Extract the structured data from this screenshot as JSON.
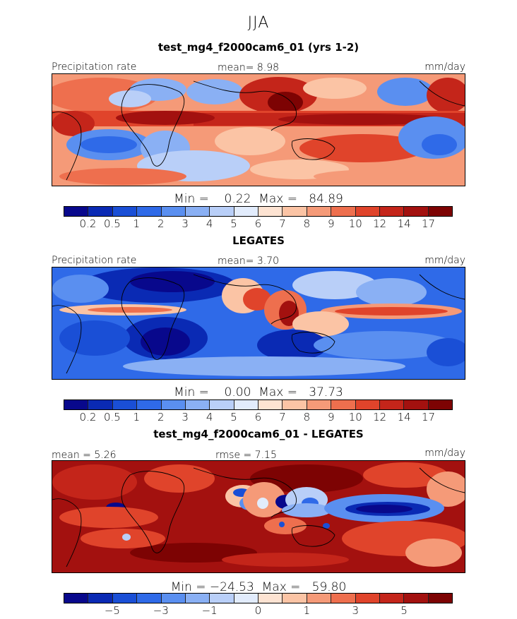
{
  "figure": {
    "season": "JJA",
    "units": "mm/day"
  },
  "panels": [
    {
      "title": "test_mg4_f2000cam6_01 (yrs 1-2)",
      "left_label": "Precipitation rate",
      "center_label": "mean=    8.98",
      "right_label": "mm/day",
      "minmax": "Min =    0.22  Max =   84.89",
      "style": "model"
    },
    {
      "title": "LEGATES",
      "left_label": "Precipitation rate",
      "center_label": "mean=    3.70",
      "right_label": "mm/day",
      "minmax": "Min =    0.00  Max =   37.73",
      "style": "obs"
    },
    {
      "title": "test_mg4_f2000cam6_01 - LEGATES",
      "left_label": "mean =     5.26",
      "center_label": "rmse =     7.15",
      "right_label": "mm/day",
      "minmax": "Min = −24.53  Max =   59.80",
      "style": "diff"
    }
  ],
  "colorbar": {
    "colors": [
      "#08088c",
      "#0a2ab4",
      "#1a4fd6",
      "#2f6ae8",
      "#5a8ff0",
      "#8ab0f4",
      "#b9cff8",
      "#e2ecfc",
      "#fde3d2",
      "#fbc4a5",
      "#f59a78",
      "#ee6f4e",
      "#e0442b",
      "#c4251a",
      "#a3110f",
      "#7d0303"
    ],
    "abs_ticks": [
      "0.2",
      "0.5",
      "1",
      "2",
      "3",
      "4",
      "5",
      "6",
      "7",
      "8",
      "9",
      "10",
      "12",
      "14",
      "17"
    ],
    "diff_ticks": [
      "−5",
      "−3",
      "−1",
      "0",
      "1",
      "3",
      "5"
    ]
  }
}
